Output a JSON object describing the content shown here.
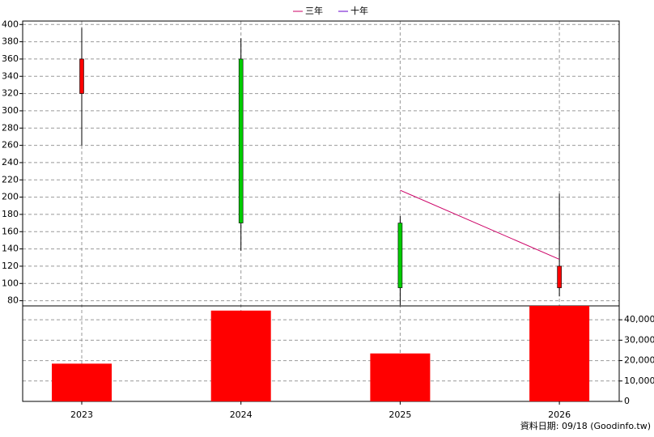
{
  "chart_data": {
    "type": "candlestick",
    "categories": [
      "2023",
      "2024",
      "2025",
      "2026"
    ],
    "open": [
      320,
      360,
      170,
      95
    ],
    "high": [
      396,
      384,
      178,
      204
    ],
    "low": [
      260,
      138,
      75,
      85
    ],
    "close": [
      360,
      170,
      95,
      120
    ],
    "up_color": "#ff0000",
    "down_color": "#00cc00",
    "series": [
      {
        "name": "三年",
        "color": "#cc0066",
        "values": [
          null,
          null,
          208,
          128
        ]
      },
      {
        "name": "十年",
        "color": "#6600cc",
        "values": [
          null,
          null,
          null,
          null
        ]
      }
    ],
    "volume": {
      "values": [
        18500,
        44500,
        23500,
        46800
      ],
      "color": "#ff0000"
    },
    "ylim": [
      74,
      404
    ],
    "yticks": [
      80,
      100,
      120,
      140,
      160,
      180,
      200,
      220,
      240,
      260,
      280,
      300,
      320,
      340,
      360,
      380,
      400
    ],
    "y2lim": [
      0,
      46800
    ],
    "y2ticks": [
      0,
      {
        "value": 10000,
        "label": "10,000"
      },
      {
        "value": 20000,
        "label": "20,000"
      },
      {
        "value": 30000,
        "label": "30,000"
      },
      {
        "value": 40000,
        "label": "40,000"
      }
    ],
    "grid": true,
    "footer": "資料日期: 09/18  (Goodinfo.tw)"
  }
}
